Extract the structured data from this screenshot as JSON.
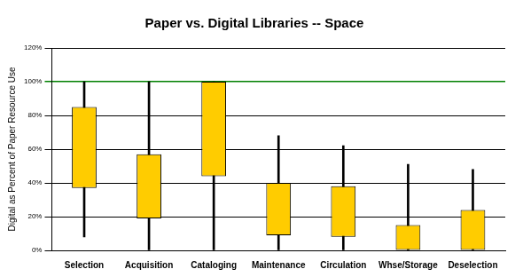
{
  "chart_data": {
    "type": "boxplot",
    "title": "Paper vs. Digital Libraries -- Space",
    "y_label": "Digital as Percent of Paper Resource Use",
    "categories": [
      "Selection",
      "Acquisition",
      "Cataloging",
      "Maintenance",
      "Circulation",
      "Whse/Storage",
      "Deselection"
    ],
    "boxes": [
      [
        37,
        85
      ],
      [
        19,
        57
      ],
      [
        44,
        100
      ],
      [
        9,
        40
      ],
      [
        8,
        38
      ],
      [
        0,
        15
      ],
      [
        0,
        24
      ]
    ],
    "whiskers": [
      [
        8,
        100
      ],
      [
        0,
        100
      ],
      [
        0,
        100
      ],
      [
        0,
        68
      ],
      [
        0,
        62
      ],
      [
        0,
        51
      ],
      [
        0,
        48
      ]
    ],
    "color": "#ffcc00",
    "reference_line": 100,
    "reference_color": "#008000",
    "ylim": [
      0,
      120
    ],
    "yticks": [
      {
        "value": 0,
        "label": "0%"
      },
      {
        "value": 20,
        "label": "20%"
      },
      {
        "value": 40,
        "label": "40%"
      },
      {
        "value": 60,
        "label": "60%"
      },
      {
        "value": 80,
        "label": "80%"
      },
      {
        "value": 100,
        "label": "100%"
      },
      {
        "value": 120,
        "label": "120%"
      }
    ],
    "grid": true
  }
}
